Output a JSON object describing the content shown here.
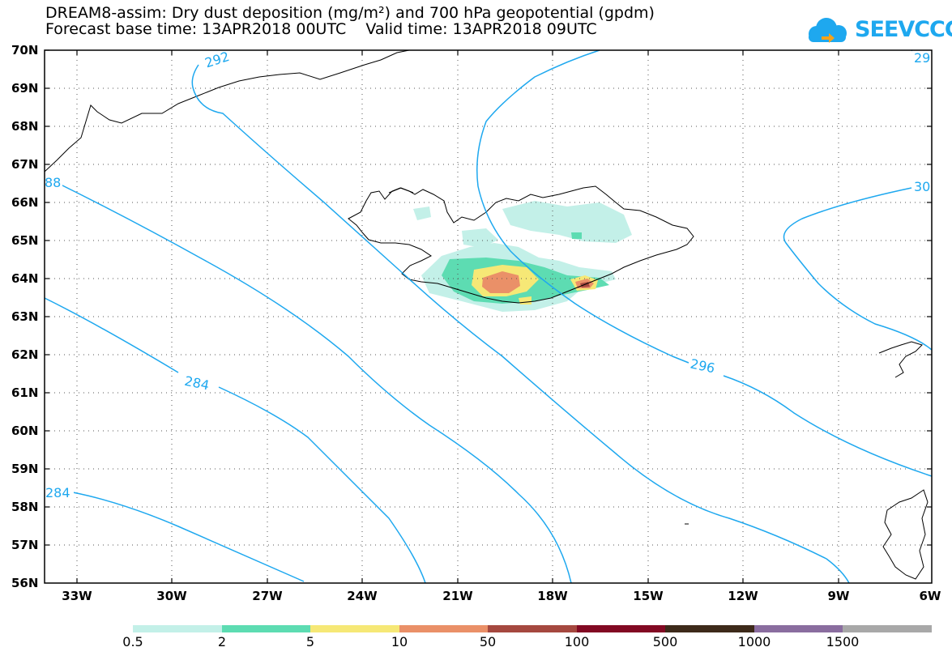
{
  "title_line1": "DREAM8-assim: Dry dust deposition (mg/m²) and 700 hPa geopotential (gpdm)",
  "title_line2": "Forecast base time: 13APR2018 00UTC    Valid time: 13APR2018 09UTC",
  "logo_text": "SEEVCCC",
  "logo_icon": "cloud-arrow-icon",
  "lat_labels": [
    "70N",
    "69N",
    "68N",
    "67N",
    "66N",
    "65N",
    "64N",
    "63N",
    "62N",
    "61N",
    "60N",
    "59N",
    "58N",
    "57N",
    "56N"
  ],
  "lon_labels": [
    "33W",
    "30W",
    "27W",
    "24W",
    "21W",
    "18W",
    "15W",
    "12W",
    "9W",
    "6W"
  ],
  "contour_labels": [
    "292",
    "88",
    "284",
    "284",
    "296",
    "30",
    "29"
  ],
  "colorbar": {
    "labels": [
      "0.5",
      "2",
      "5",
      "10",
      "50",
      "100",
      "500",
      "1000",
      "1500"
    ],
    "colors": [
      "#c3f0e8",
      "#5ddcb2",
      "#f6e876",
      "#ea9068",
      "#a5483f",
      "#820923",
      "#3d2a1a",
      "#8a6d9f",
      "#a8a8a8"
    ]
  },
  "geopotential_color": "#1ea8ef"
}
